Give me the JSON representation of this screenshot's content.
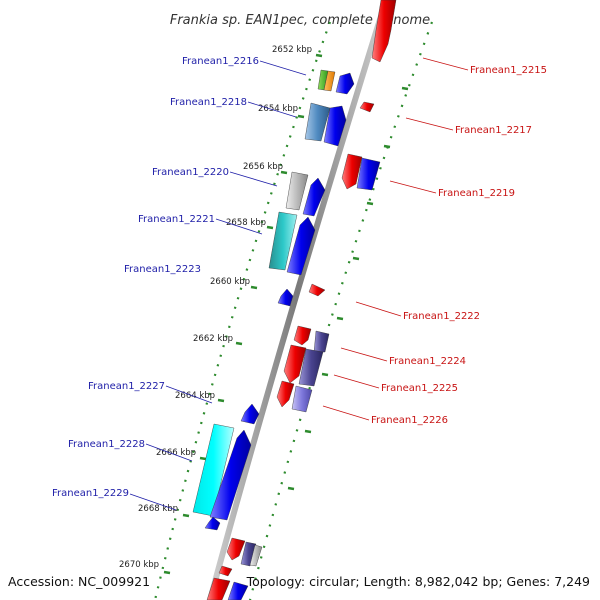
{
  "title": "Frankia sp. EAN1pec, complete genome",
  "footer": {
    "accession": "Accession: NC_009921",
    "summary": "Topology: circular; Length: 8,982,042 bp; Genes: 7,249"
  },
  "colors": {
    "backbone": "#888888",
    "tick": "#2e8b2e",
    "forward": "#0000ee",
    "reverse": "#ee0000",
    "left_label": "#1f1fa8",
    "right_label": "#c81414"
  },
  "scale_marks": [
    {
      "label": "2652 kbp"
    },
    {
      "label": "2654 kbp"
    },
    {
      "label": "2656 kbp"
    },
    {
      "label": "2658 kbp"
    },
    {
      "label": "2660 kbp"
    },
    {
      "label": "2662 kbp"
    },
    {
      "label": "2664 kbp"
    },
    {
      "label": "2666 kbp"
    },
    {
      "label": "2668 kbp"
    },
    {
      "label": "2670 kbp"
    }
  ],
  "left_genes": [
    {
      "label": "Franean1_2216"
    },
    {
      "label": "Franean1_2218"
    },
    {
      "label": "Franean1_2220"
    },
    {
      "label": "Franean1_2221"
    },
    {
      "label": "Franean1_2223"
    },
    {
      "label": "Franean1_2227"
    },
    {
      "label": "Franean1_2228"
    },
    {
      "label": "Franean1_2229"
    }
  ],
  "right_genes": [
    {
      "label": "Franean1_2215"
    },
    {
      "label": "Franean1_2217"
    },
    {
      "label": "Franean1_2219"
    },
    {
      "label": "Franean1_2222"
    },
    {
      "label": "Franean1_2224"
    },
    {
      "label": "Franean1_2225"
    },
    {
      "label": "Franean1_2226"
    }
  ]
}
